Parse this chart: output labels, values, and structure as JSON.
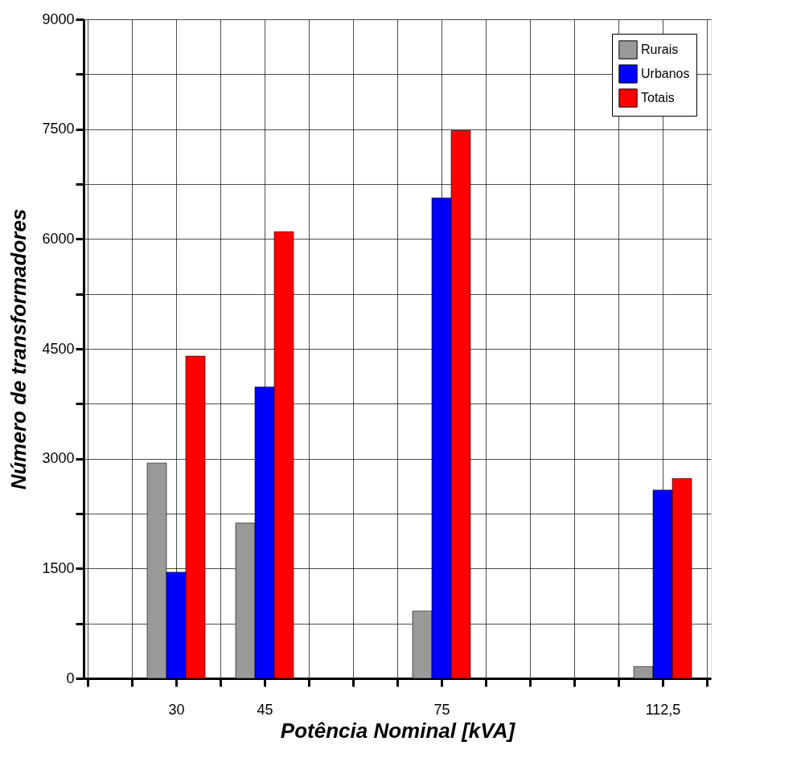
{
  "chart_data": {
    "type": "bar",
    "xlabel": "Potência Nominal [kVA]",
    "ylabel": "Número de transformadores",
    "x": [
      30,
      45,
      75,
      112.5
    ],
    "series": [
      {
        "name": "Rurais",
        "color": "#999999",
        "values": [
          2940,
          2120,
          920,
          160
        ]
      },
      {
        "name": "Urbanos",
        "color": "#0000ff",
        "values": [
          1450,
          3980,
          6560,
          2570
        ]
      },
      {
        "name": "Totais",
        "color": "#ff0000",
        "values": [
          4400,
          6100,
          7480,
          2730
        ]
      }
    ],
    "xlim": [
      15,
      120
    ],
    "xticks": [
      {
        "value": 15,
        "label": null
      },
      {
        "value": 22.5,
        "label": null
      },
      30,
      {
        "value": 37.5,
        "label": null
      },
      45,
      {
        "value": 52.5,
        "label": null
      },
      {
        "value": 60,
        "label": null
      },
      {
        "value": 67.5,
        "label": null
      },
      75,
      {
        "value": 82.5,
        "label": null
      },
      {
        "value": 90,
        "label": null
      },
      {
        "value": 97.5,
        "label": null
      },
      {
        "value": 105,
        "label": null
      },
      {
        "value": 112.5,
        "label": "112,5"
      },
      {
        "value": 120,
        "label": null
      }
    ],
    "ylim": [
      0,
      9000
    ],
    "yticks": [
      0,
      {
        "value": 750,
        "label": null
      },
      1500,
      {
        "value": 2250,
        "label": null
      },
      3000,
      {
        "value": 3750,
        "label": null
      },
      4500,
      {
        "value": 5250,
        "label": null
      },
      6000,
      {
        "value": 6750,
        "label": null
      },
      7500,
      {
        "value": 8250,
        "label": null
      },
      9000
    ],
    "grid": true,
    "legend": "top right"
  }
}
